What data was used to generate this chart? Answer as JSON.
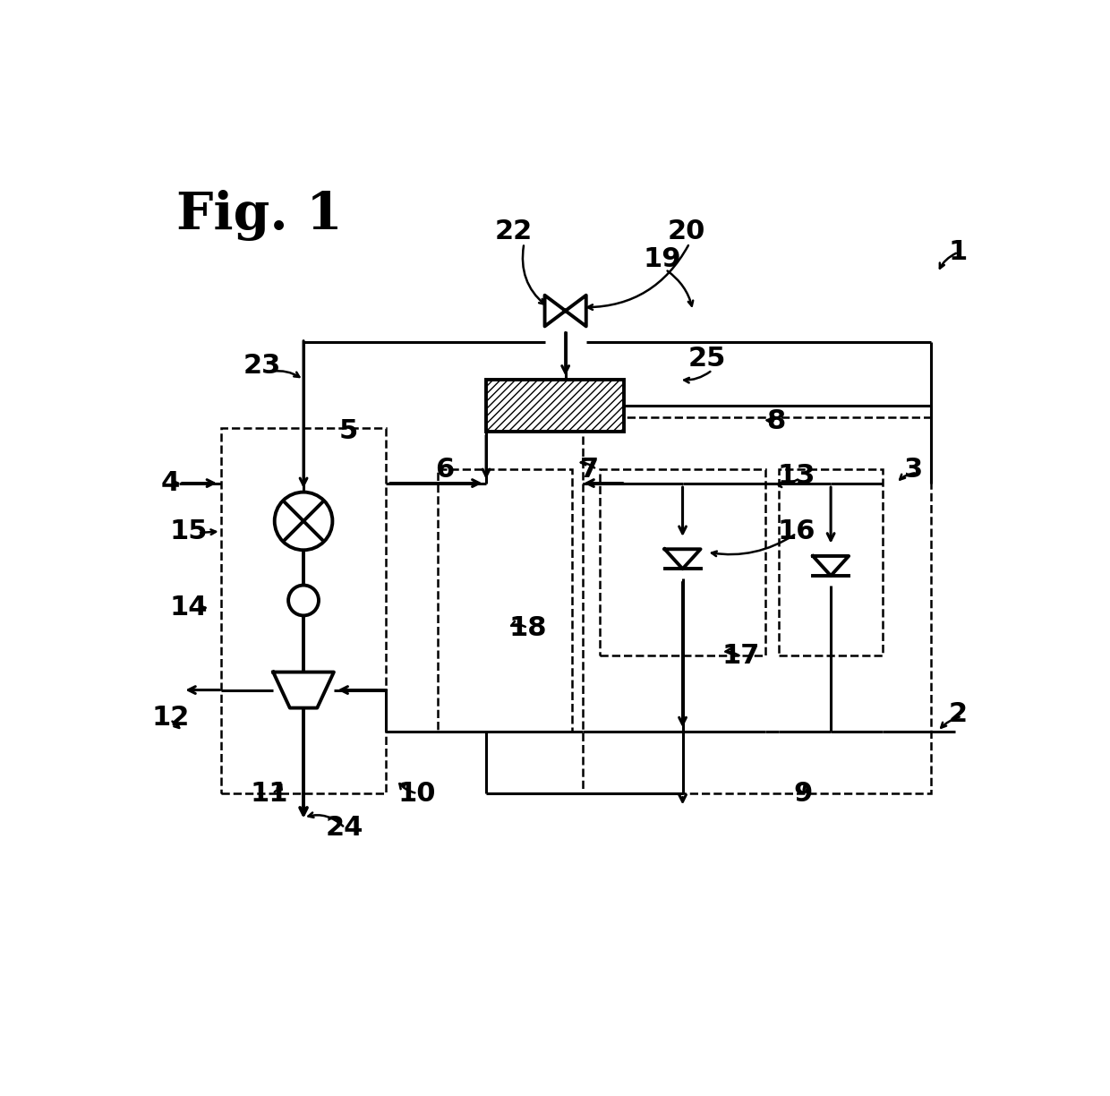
{
  "background_color": "#ffffff",
  "title": "Fig. 1",
  "lw": 2.2,
  "lw_thick": 2.8,
  "lw_dashed": 1.8,
  "fontsize_label": 22,
  "fontsize_title": 42
}
